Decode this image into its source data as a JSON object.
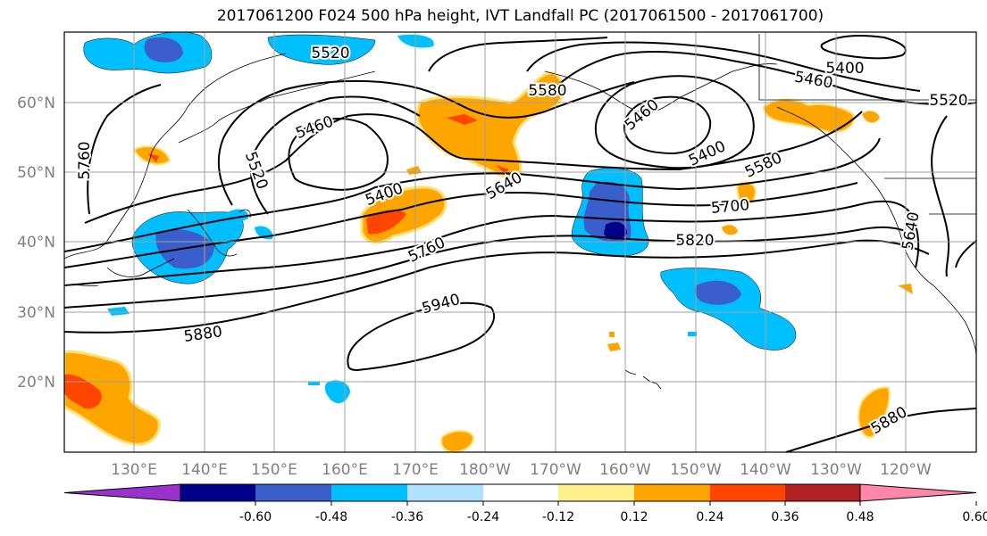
{
  "title": "2017061200 F024 500 hPa height, IVT Landfall PC (2017061500 - 2017061700)",
  "lat_labels": [
    "60°N",
    "50°N",
    "40°N",
    "30°N",
    "20°N"
  ],
  "lon_labels": [
    "130°E",
    "140°E",
    "150°E",
    "160°E",
    "170°E",
    "180°W",
    "170°W",
    "160°W",
    "150°W",
    "140°W",
    "130°W",
    "120°W"
  ],
  "contour_labels": [
    "5520",
    "5580",
    "5400",
    "5460",
    "5520",
    "5460",
    "5760",
    "5520",
    "5460",
    "5400",
    "5400",
    "5580",
    "5640",
    "5700",
    "5820",
    "5760",
    "5640",
    "5940",
    "5880",
    "5880"
  ],
  "colorbar": {
    "colors": [
      "#9932cc",
      "#00008b",
      "#3a5fcd",
      "#00bfff",
      "#b0e2ff",
      "#ffffff",
      "#fff08c",
      "#ffa500",
      "#ff4500",
      "#b22222",
      "#ff88aa"
    ],
    "tick_labels": [
      "-0.60",
      "-0.48",
      "-0.36",
      "-0.24",
      "-0.12",
      "0.12",
      "0.24",
      "0.36",
      "0.48",
      "0.60"
    ]
  },
  "colors": {
    "contour": "#000000",
    "grid": "#a0a0a0",
    "axis_text": "#808080"
  }
}
